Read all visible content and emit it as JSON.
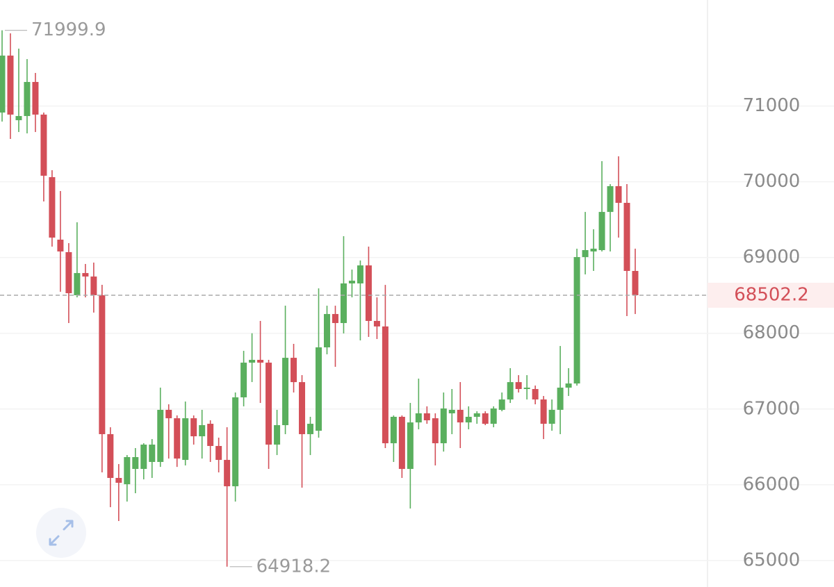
{
  "chart_data": {
    "type": "candlestick",
    "up_color": "#5aaf5e",
    "down_color": "#d34f58",
    "open": [
      70914,
      71666,
      70813,
      70868,
      71318,
      70887,
      70061,
      69236,
      69071,
      68502,
      68795,
      68749,
      68502,
      66668,
      66090,
      66007,
      66209,
      66209,
      66301,
      66301,
      66989,
      66878,
      66328,
      66878,
      66640,
      66805,
      66512,
      66328,
      65980,
      67154,
      67612,
      67649,
      67612,
      66530,
      66787,
      67676,
      67355,
      66668,
      66713,
      67814,
      68254,
      68135,
      68658,
      68658,
      68896,
      68163,
      68090,
      66548,
      66897,
      66209,
      66823,
      66943,
      66878,
      66548,
      66943,
      66989,
      66823,
      66897,
      66943,
      66805,
      66989,
      67126,
      67355,
      67264,
      67264,
      67126,
      66805,
      66989,
      67282,
      67337,
      69006,
      69080,
      69098,
      69602,
      69942,
      69722,
      68823
    ],
    "high": [
      71999.9,
      71960,
      71758,
      71620,
      71437,
      70914,
      70153,
      69878,
      69190,
      69465,
      68915,
      68933,
      68640,
      66759,
      66273,
      66392,
      66484,
      66548,
      66603,
      67282,
      67062,
      66915,
      67099,
      66915,
      66989,
      66851,
      66622,
      66759,
      67218,
      67768,
      68000,
      68163,
      67649,
      66989,
      68364,
      67860,
      67447,
      66897,
      68593,
      68364,
      68364,
      69282,
      68841,
      68961,
      69144,
      68474,
      68639,
      66915,
      66915,
      67080,
      67401,
      67035,
      66943,
      67218,
      67264,
      67356,
      67035,
      66970,
      66970,
      67035,
      67218,
      67539,
      67447,
      67447,
      67310,
      67172,
      67126,
      67832,
      67539,
      69117,
      69602,
      69373,
      70272,
      69969,
      70336,
      69969,
      69117
    ],
    "low": [
      70795,
      70566,
      70657,
      70639,
      70657,
      69740,
      69144,
      68548,
      68135,
      68474,
      68474,
      68273,
      66163,
      65704,
      65521,
      65778,
      65888,
      66071,
      66090,
      66236,
      66346,
      66236,
      66255,
      66530,
      66346,
      66301,
      66163,
      64918.2,
      65778,
      67035,
      67356,
      67080,
      66209,
      66392,
      66668,
      67218,
      65961,
      66392,
      66622,
      67722,
      67557,
      67998,
      68474,
      67906,
      67952,
      67924,
      66484,
      66301,
      66090,
      65686,
      66732,
      66805,
      66255,
      66438,
      66668,
      66484,
      66732,
      66805,
      66787,
      66759,
      66970,
      67080,
      67218,
      67126,
      67062,
      66603,
      66713,
      66668,
      67172,
      67309,
      68777,
      68823,
      69080,
      69080,
      69263,
      68227,
      68254
    ],
    "close": [
      71666,
      70887,
      70868,
      71318,
      70887,
      70080,
      69263,
      69080,
      68529,
      68795,
      68749,
      68502,
      66668,
      66090,
      66026,
      66365,
      66365,
      66530,
      66530,
      66989,
      66878,
      66346,
      66878,
      66640,
      66787,
      66512,
      66328,
      65980,
      67154,
      67612,
      67649,
      67612,
      66530,
      66787,
      67676,
      67355,
      66668,
      66805,
      67814,
      68254,
      68135,
      68658,
      68694,
      68896,
      68163,
      68090,
      66548,
      66897,
      66209,
      66823,
      66943,
      66851,
      66548,
      67007,
      66989,
      66823,
      66897,
      66943,
      66805,
      67007,
      67126,
      67355,
      67264,
      67282,
      67126,
      66805,
      66989,
      67282,
      67337,
      69006,
      69098,
      69117,
      69602,
      69942,
      69722,
      68823,
      68502.2
    ],
    "ylim": [
      64650,
      72400
    ],
    "yticks": [
      65000,
      66000,
      67000,
      68000,
      69000,
      70000,
      71000
    ],
    "grid": true
  }
}
